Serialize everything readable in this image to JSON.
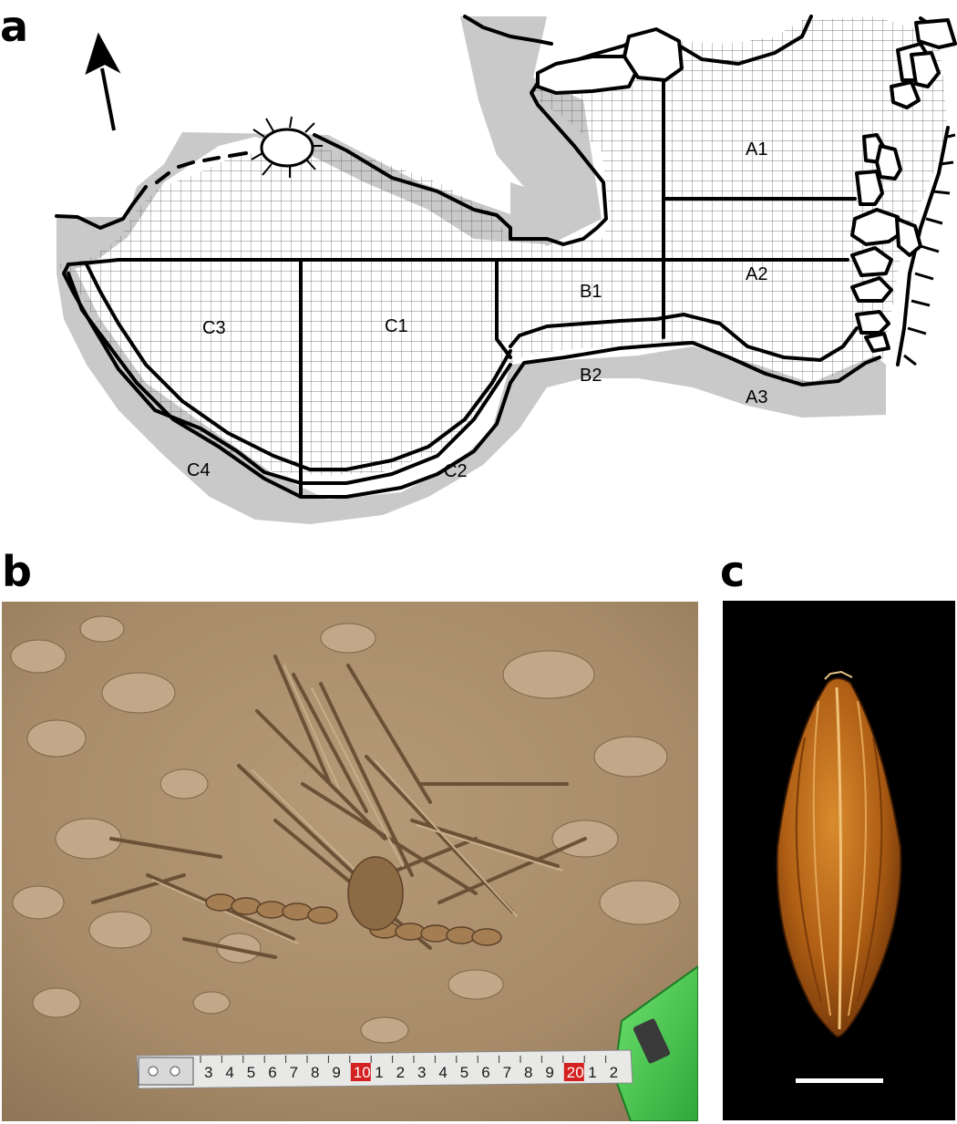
{
  "panels": {
    "a": {
      "letter": "a"
    },
    "b": {
      "letter": "b"
    },
    "c": {
      "letter": "c"
    }
  },
  "site_plan": {
    "zones": [
      "A1",
      "A2",
      "A3",
      "B1",
      "B2",
      "C1",
      "C2",
      "C3",
      "C4"
    ],
    "north_arrow": "north-arrow-icon"
  },
  "tape_measure": {
    "ticks": [
      "3",
      "4",
      "5",
      "6",
      "7",
      "8",
      "9",
      "10",
      "1",
      "2",
      "3",
      "4",
      "5",
      "6",
      "7",
      "8",
      "9",
      "20",
      "1",
      "2"
    ],
    "highlighted": [
      "10",
      "20"
    ],
    "highlight_color": "#d42020"
  },
  "scale_bar": {
    "color": "#ffffff"
  }
}
